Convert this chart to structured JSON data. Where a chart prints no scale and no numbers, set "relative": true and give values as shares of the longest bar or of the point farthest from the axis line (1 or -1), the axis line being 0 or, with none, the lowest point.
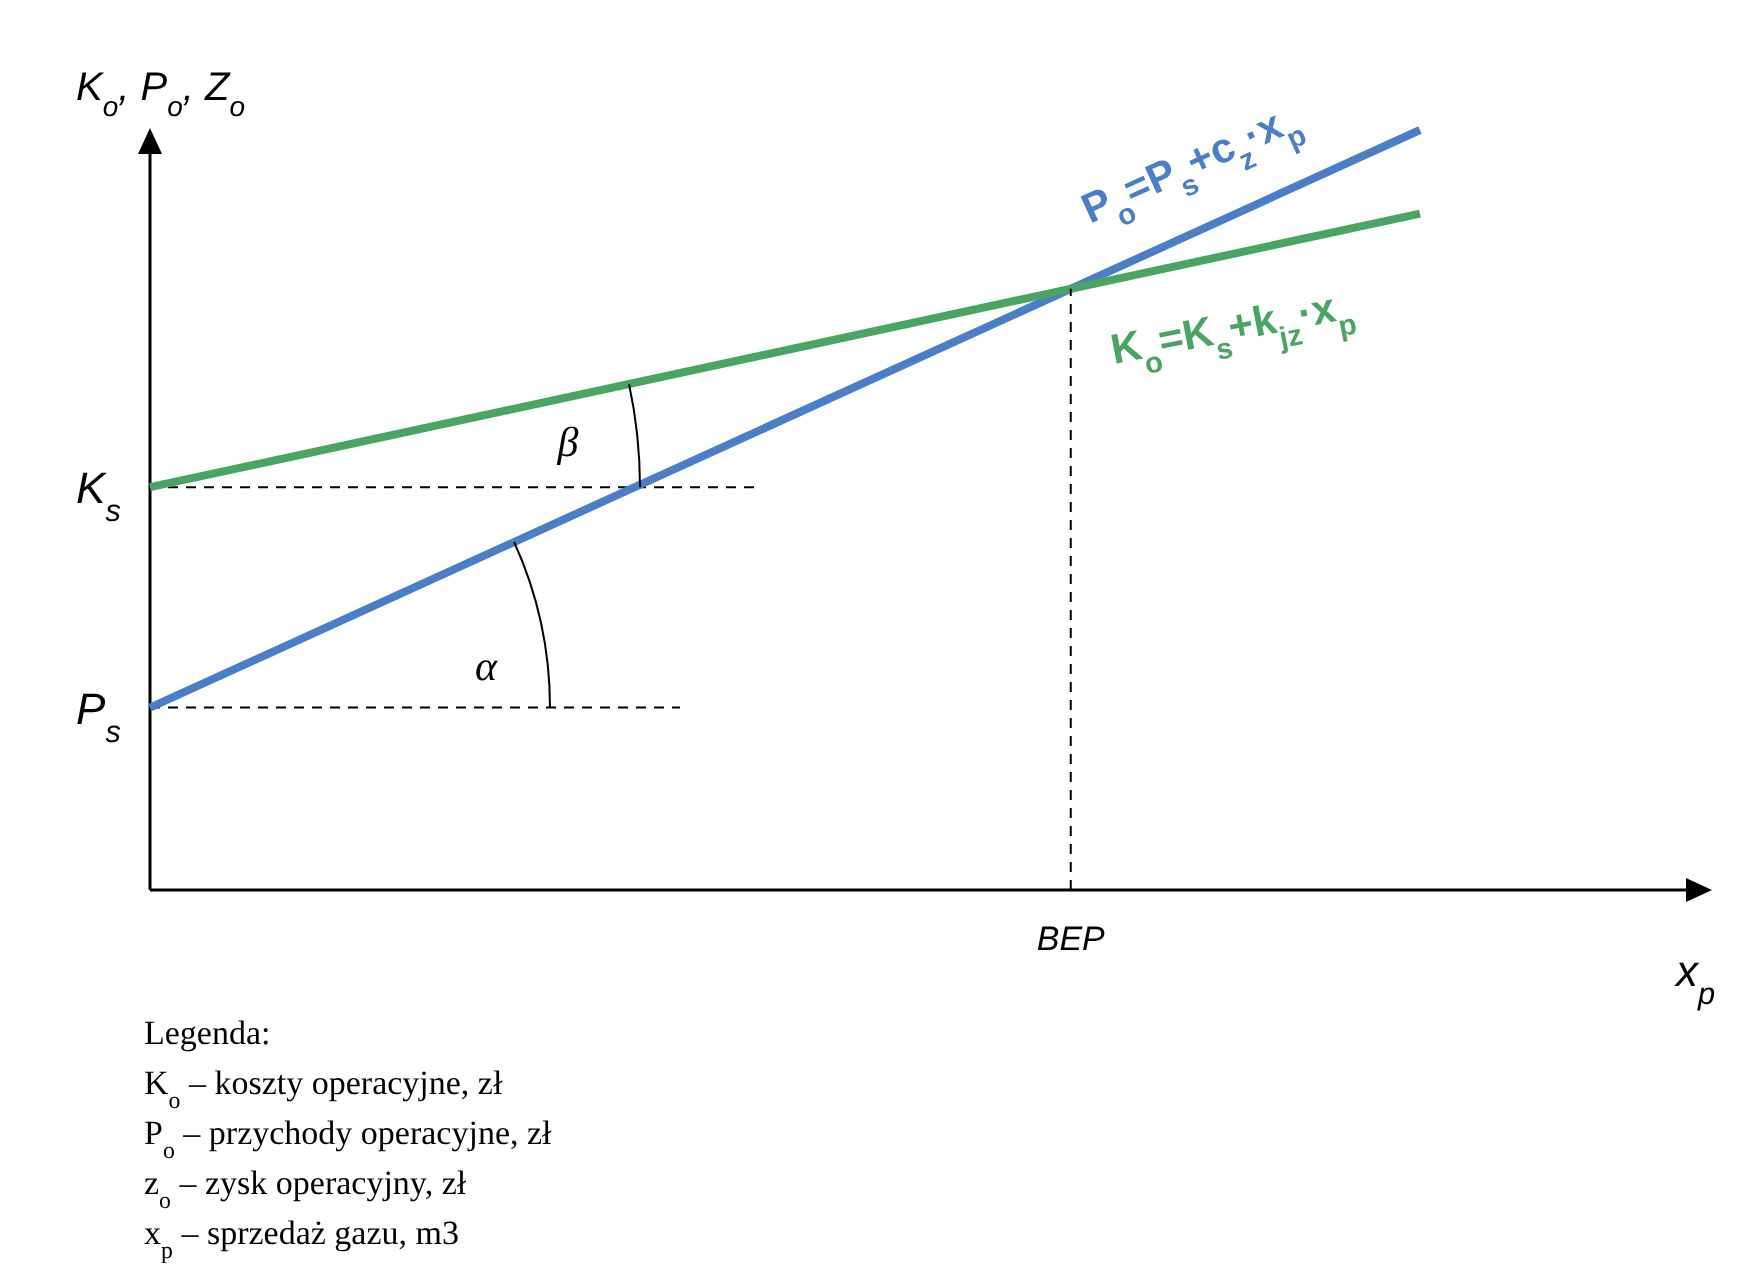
{
  "chart_data": {
    "type": "line",
    "relative": true,
    "xlabel": "x$_{p}$",
    "ylabel": "K$_{o}$, P$_{o}$, Z$_{o}$",
    "categories": [
      null,
      null
    ],
    "series": [
      {
        "name": "P$_{o}$=P$_{s}$+c$_{z}$·x$_{p}$",
        "color": "#4a7fc8",
        "values": [
          0.24,
          1.0
        ]
      },
      {
        "name": "K$_{o}$=K$_{s}$+k$_{jz}$·x$_{p}$",
        "color": "#4aa564",
        "values": [
          0.53,
          0.89
        ]
      }
    ],
    "ref_lines": [
      {
        "axis": "y",
        "value": 0.53,
        "label": "K$_{s}$",
        "line_style": "dashed"
      },
      {
        "axis": "y",
        "value": 0.24,
        "label": "P$_{s}$",
        "line_style": "dashed"
      }
    ],
    "annotations": [
      "BEP",
      "α",
      "β",
      "Legenda:",
      "K$_{o}$ – koszty operacyjne, zł",
      "P$_{o}$ – przychody operacyjne, zł",
      "z$_{o}$ – zysk operacyjny, zł",
      "x$_{p}$ – sprzedaż gazu, m3"
    ],
    "marker": "none",
    "line_style": "solid"
  }
}
